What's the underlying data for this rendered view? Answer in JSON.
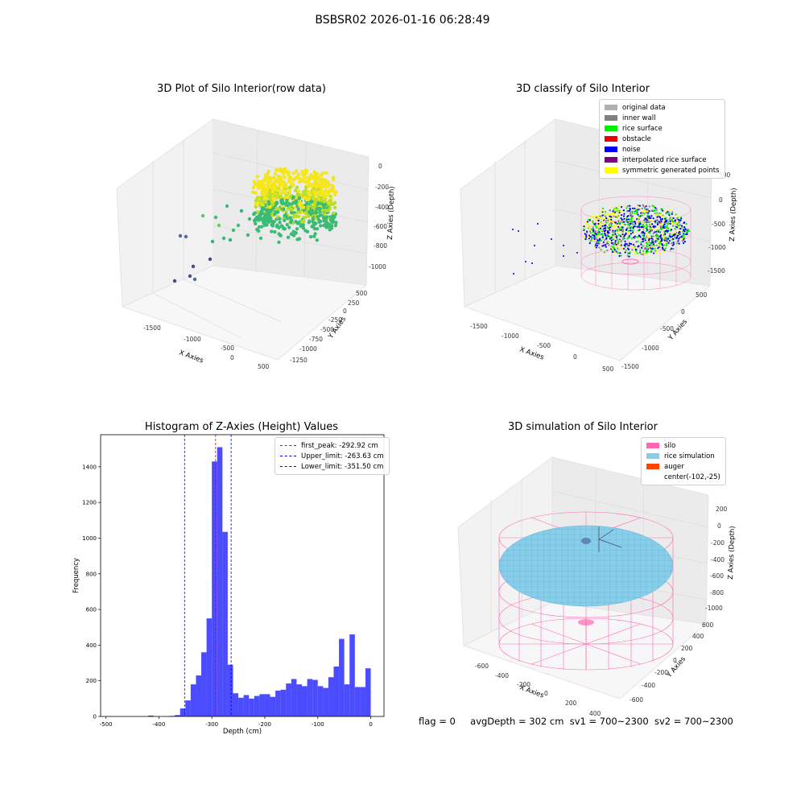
{
  "figure": {
    "suptitle": "BSBSR02 2026-01-16 06:28:49"
  },
  "panels": {
    "raw": {
      "title": "3D Plot of Silo Interior(row data)",
      "xlabel": "X Axies",
      "ylabel": "Y Axies",
      "zlabel": "Z Axies (Depth)",
      "xticks": [
        "-1500",
        "-1000",
        "-500",
        "0",
        "500"
      ],
      "yticks": [
        "500",
        "250",
        "0",
        "-250",
        "-500",
        "-750",
        "-1000",
        "-1250"
      ],
      "zticks": [
        "0",
        "-200",
        "-400",
        "-600",
        "-800",
        "-1000"
      ]
    },
    "classify": {
      "title": "3D classify of Silo Interior",
      "xlabel": "X Axies",
      "ylabel": "Y Axies",
      "zlabel": "Z Axies (Depth)",
      "xticks": [
        "-1500",
        "-1000",
        "-500",
        "0",
        "500"
      ],
      "yticks": [
        "500",
        "0",
        "-500",
        "-1000",
        "-1500"
      ],
      "zticks": [
        "500",
        "0",
        "-500",
        "-1000",
        "-1500"
      ],
      "legend": [
        {
          "label": "original data",
          "color": "#b0b0b0"
        },
        {
          "label": "inner wall",
          "color": "#808080"
        },
        {
          "label": "rice surface",
          "color": "#00ee00"
        },
        {
          "label": "obstacle",
          "color": "#ee0000"
        },
        {
          "label": "noise",
          "color": "#0000ee"
        },
        {
          "label": "interpolated rice surface",
          "color": "#800080"
        },
        {
          "label": "symmetric generated points",
          "color": "#ffff00"
        }
      ]
    },
    "histogram": {
      "title": "Histogram of Z-Axies (Height) Values",
      "xlabel": "Depth (cm)",
      "ylabel": "Frequency",
      "legend": [
        {
          "label": "first_peak: -292.92 cm",
          "color": "#ee0000"
        },
        {
          "label": "Upper_limit: -263.63 cm",
          "color": "#0000ee"
        },
        {
          "label": "Lower_limit: -351.50 cm",
          "color": "#0000ee"
        }
      ]
    },
    "simulation": {
      "title": "3D simulation of Silo Interior",
      "xlabel": "X Axies",
      "ylabel": "Y Axies",
      "zlabel": "Z Axies (Depth)",
      "xticks": [
        "-600",
        "-400",
        "-200",
        "0",
        "200",
        "400"
      ],
      "yticks": [
        "600",
        "400",
        "200",
        "0",
        "-200",
        "-400",
        "-600"
      ],
      "zticks": [
        "200",
        "0",
        "-200",
        "-400",
        "-600",
        "-800",
        "-1000"
      ],
      "legend": [
        {
          "label": "silo",
          "color": "#ff69b4"
        },
        {
          "label": "rice simulation",
          "color": "#87ceeb"
        },
        {
          "label": "auger",
          "color": "#ff4500"
        },
        {
          "label": "center(-102,-25)",
          "color": ""
        }
      ]
    }
  },
  "status": {
    "flag": "flag = 0",
    "avg": "avgDepth = 302 cm",
    "sv1": "sv1 = 700~2300",
    "sv2": "sv2 = 700~2300"
  },
  "chart_data": [
    {
      "type": "bar",
      "title": "Histogram of Z-Axies (Height) Values",
      "xlabel": "Depth (cm)",
      "ylabel": "Frequency",
      "xlim": [
        -510,
        25
      ],
      "ylim": [
        0,
        1580
      ],
      "xticks": [
        -500,
        -400,
        -300,
        -200,
        -100,
        0
      ],
      "yticks": [
        0,
        200,
        400,
        600,
        800,
        1000,
        1200,
        1400
      ],
      "bin_width": 10,
      "bin_starts": [
        -420,
        -380,
        -370,
        -360,
        -350,
        -340,
        -330,
        -320,
        -310,
        -300,
        -290,
        -280,
        -270,
        -260,
        -250,
        -240,
        -230,
        -220,
        -210,
        -200,
        -190,
        -180,
        -170,
        -160,
        -150,
        -140,
        -130,
        -120,
        -110,
        -100,
        -90,
        -80,
        -70,
        -60,
        -50,
        -40,
        -30,
        -20,
        -10
      ],
      "values": [
        5,
        3,
        8,
        45,
        90,
        180,
        230,
        360,
        550,
        1430,
        1510,
        1035,
        290,
        130,
        105,
        120,
        100,
        115,
        125,
        125,
        110,
        145,
        150,
        185,
        210,
        180,
        170,
        210,
        205,
        170,
        160,
        220,
        280,
        435,
        180,
        460,
        165,
        165,
        270
      ],
      "color": "#0000ff",
      "vlines": [
        {
          "x": -292.92,
          "color": "#ee0000",
          "label": "first_peak: -292.92 cm"
        },
        {
          "x": -263.63,
          "color": "#0000ee",
          "label": "Upper_limit: -263.63 cm"
        },
        {
          "x": -351.5,
          "color": "#0000ee",
          "label": "Lower_limit: -351.50 cm"
        }
      ],
      "legend_position": "top-right"
    }
  ]
}
